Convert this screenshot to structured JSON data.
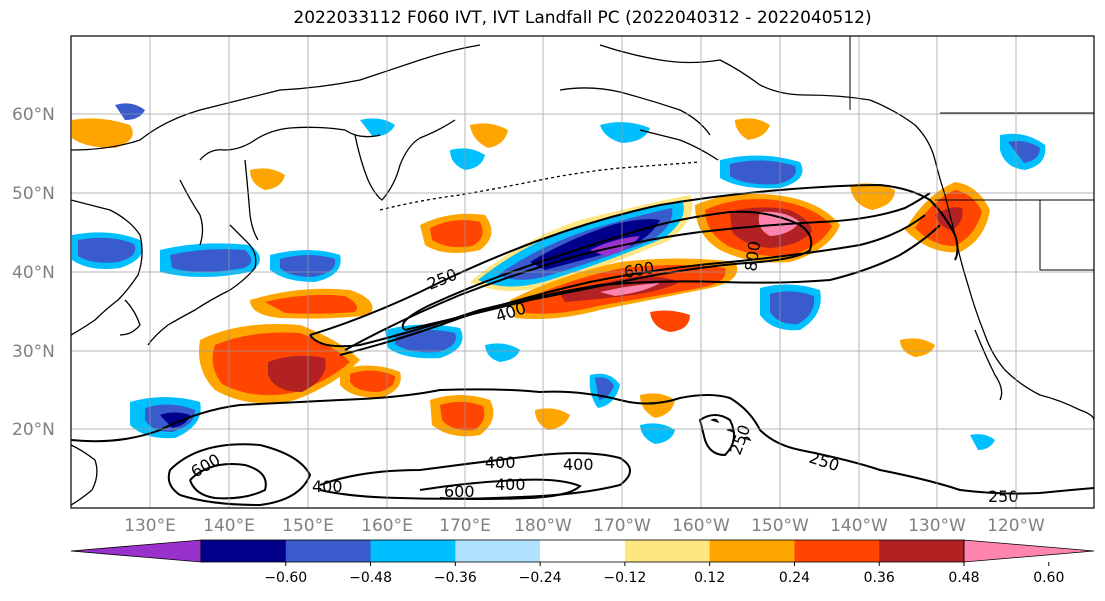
{
  "title": "2022033112 F060 IVT, IVT Landfall PC (2022040312 - 2022040512)",
  "lat_labels": [
    "60°N",
    "50°N",
    "40°N",
    "30°N",
    "20°N"
  ],
  "lon_labels": [
    "130°E",
    "140°E",
    "150°E",
    "160°E",
    "170°E",
    "180°W",
    "170°W",
    "160°W",
    "150°W",
    "140°W",
    "130°W",
    "120°W"
  ],
  "contour_labels": [
    "250",
    "400",
    "600",
    "800",
    "250",
    "250",
    "250",
    "600",
    "400",
    "400",
    "400",
    "600",
    "400",
    "250"
  ],
  "colorbar": {
    "ticks": [
      "−0.60",
      "−0.48",
      "−0.36",
      "−0.24",
      "−0.12",
      "0.12",
      "0.24",
      "0.36",
      "0.48",
      "0.60"
    ],
    "colors": [
      "#9932CC",
      "#00008B",
      "#3A5BCC",
      "#00BFFF",
      "#B0E2FF",
      "#FFFFFF",
      "#FFE680",
      "#FFA500",
      "#FF4500",
      "#B22222",
      "#FF85B0"
    ]
  },
  "palette": {
    "neg_dark": "#00008B",
    "neg_mid": "#3A5BCC",
    "neg_light": "#00BFFF",
    "neg_pale": "#B0E2FF",
    "pos_pale": "#FFE680",
    "pos_light": "#FFA500",
    "pos_mid": "#FF4500",
    "pos_dark": "#B22222",
    "pos_max": "#FF85B0",
    "neg_max": "#9932CC"
  }
}
